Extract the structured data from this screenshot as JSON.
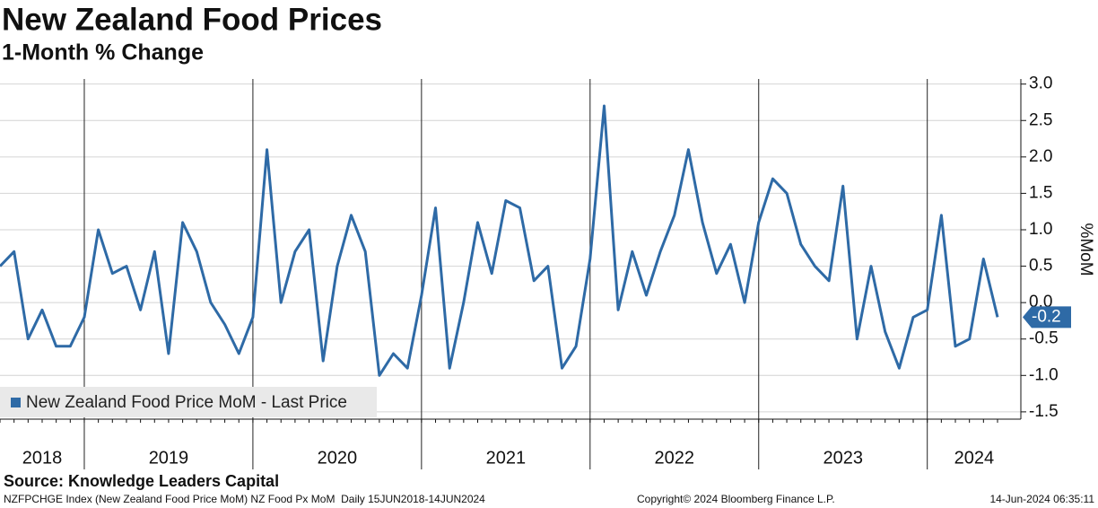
{
  "chart_data": {
    "type": "line",
    "title": "New Zealand Food Prices",
    "subtitle": "1-Month % Change",
    "y_axis_label": "%MoM",
    "x_labels": [
      "2018",
      "2019",
      "2020",
      "2021",
      "2022",
      "2023",
      "2024"
    ],
    "series": [
      {
        "name": "New Zealand Food Price MoM - Last Price",
        "color": "#2e6aa6",
        "values": [
          0.5,
          0.7,
          -0.5,
          -0.1,
          -0.6,
          -0.6,
          -0.2,
          1.0,
          0.4,
          0.5,
          -0.1,
          0.7,
          -0.7,
          1.1,
          0.7,
          0.0,
          -0.3,
          -0.7,
          -0.2,
          2.1,
          0.0,
          0.7,
          1.0,
          -0.8,
          0.5,
          1.2,
          0.7,
          -1.0,
          -0.7,
          -0.9,
          0.1,
          1.3,
          -0.9,
          0.0,
          1.1,
          0.4,
          1.4,
          1.3,
          0.3,
          0.5,
          -0.9,
          -0.6,
          0.6,
          2.7,
          -0.1,
          0.7,
          0.1,
          0.7,
          1.2,
          2.1,
          1.1,
          0.4,
          0.8,
          0.0,
          1.1,
          1.7,
          1.5,
          0.8,
          0.5,
          0.3,
          1.6,
          -0.5,
          0.5,
          -0.4,
          -0.9,
          -0.2,
          -0.1,
          1.2,
          -0.6,
          -0.5,
          0.6,
          -0.2
        ]
      }
    ],
    "ylim": [
      -1.6,
      3.07
    ],
    "yticks": [
      {
        "value": 3,
        "label": "3.0"
      },
      2.5,
      {
        "value": 2,
        "label": "2.0"
      },
      1.5,
      {
        "value": 1,
        "label": "1.0"
      },
      0.5,
      {
        "value": 0,
        "label": "0.0"
      },
      -0.5,
      {
        "value": -1,
        "label": "-1.0"
      },
      -1.5
    ],
    "grid": true,
    "legend": "lower left",
    "source": "Source: Knowledge Leaders Capital",
    "footer_left": "NZFPCHGE Index (New Zealand Food Price MoM) NZ Food Px MoM  Daily 15JUN2018-14JUN2024",
    "footer_center": "Copyright© 2024 Bloomberg Finance L.P.",
    "footer_right": "14-Jun-2024 06:35:11"
  }
}
